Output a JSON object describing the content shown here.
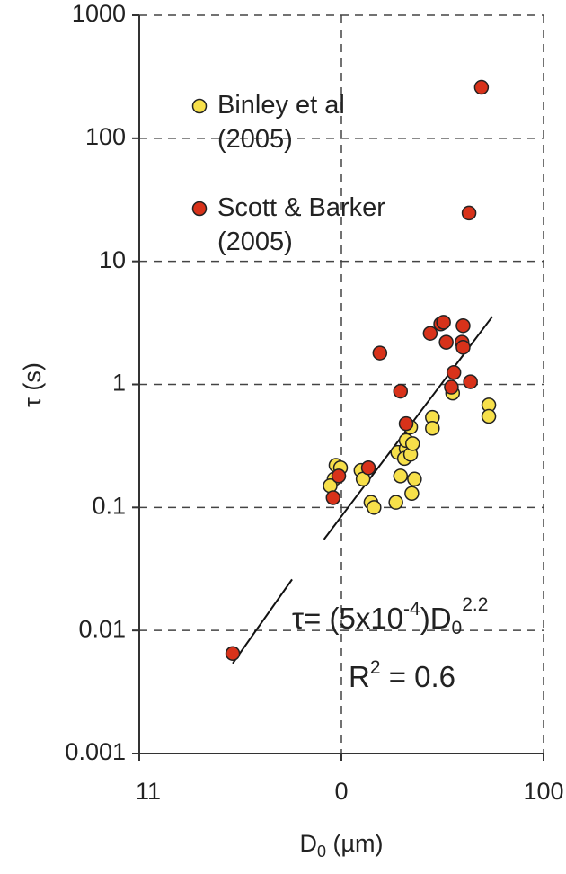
{
  "chart_data": {
    "type": "scatter",
    "xlabel": [
      "D",
      "0",
      " (µm)"
    ],
    "ylabel": "τ (s)",
    "xlog": true,
    "ylog": true,
    "grid": true,
    "xlim": [
      1,
      100
    ],
    "ylim": [
      0.001,
      1000
    ],
    "xticks": [
      {
        "value": 1,
        "label": "11"
      },
      {
        "value": 10,
        "label": "0"
      },
      100
    ],
    "yticks": [
      0.001,
      0.01,
      0.1,
      1,
      10,
      100,
      1000
    ],
    "legend": "top-left",
    "series": [
      {
        "name": "Binley et al\n(2005)",
        "color": "#f7e04a",
        "x": [
          9.4,
          9.2,
          8.8,
          9.9,
          12.5,
          12.8,
          14,
          14.5,
          18.6,
          19.6,
          19,
          20.9,
          20.9,
          20.5,
          22,
          22.5,
          22,
          23,
          22.3,
          28.2,
          28.2,
          35.5,
          53.6,
          53.6
        ],
        "values": [
          0.22,
          0.17,
          0.15,
          0.21,
          0.2,
          0.17,
          0.11,
          0.1,
          0.11,
          0.18,
          0.28,
          0.3,
          0.35,
          0.25,
          0.27,
          0.33,
          0.45,
          0.17,
          0.13,
          0.54,
          0.44,
          0.85,
          0.68,
          0.55
        ]
      },
      {
        "name": "Scott & Barker\n(2005)",
        "color": "#d8321a",
        "x": [
          49.3,
          42.8,
          2.9,
          9.1,
          9.7,
          13.6,
          15.5,
          19.6,
          20.9,
          27.5,
          31,
          32,
          33,
          36,
          35,
          39.5,
          40,
          40,
          43.5
        ],
        "values": [
          260,
          24.7,
          0.0065,
          0.12,
          0.18,
          0.21,
          1.8,
          0.88,
          0.48,
          2.6,
          3.1,
          3.2,
          2.2,
          1.25,
          0.95,
          2.2,
          3.0,
          2.0,
          1.05
        ]
      }
    ],
    "fit": {
      "x": [
        2.9,
        5.7,
        7,
        8.2,
        55.8
      ],
      "values": [
        0.0054,
        0.026,
        null,
        0.055,
        3.56
      ]
    },
    "equation": [
      "τ= (5x10",
      "-4",
      ")D",
      "0",
      "2.2"
    ],
    "r2": [
      "R",
      "2",
      " = 0.6"
    ]
  }
}
